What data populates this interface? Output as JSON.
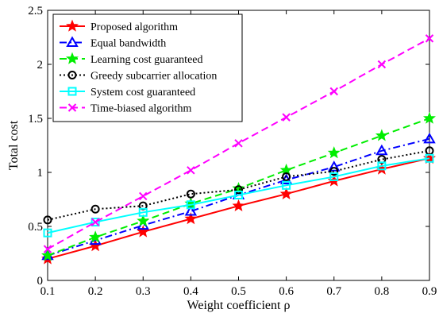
{
  "chart_data": {
    "type": "line",
    "title": "",
    "xlabel": "Weight coefficient ρ",
    "ylabel": "Total cost",
    "xlim": [
      0.1,
      0.9
    ],
    "ylim": [
      0,
      2.5
    ],
    "x": [
      0.1,
      0.2,
      0.3,
      0.4,
      0.5,
      0.6,
      0.7,
      0.8,
      0.9
    ],
    "x_ticks": [
      "0.1",
      "0.2",
      "0.3",
      "0.4",
      "0.5",
      "0.6",
      "0.7",
      "0.8",
      "0.9"
    ],
    "y_ticks": [
      {
        "value": 0,
        "label": "0"
      },
      {
        "value": 0.5,
        "label": "0.5"
      },
      {
        "value": 1,
        "label": "1"
      },
      {
        "value": 1.5,
        "label": "1.5"
      },
      {
        "value": 2,
        "label": "2"
      },
      {
        "value": 2.5,
        "label": "2.5"
      }
    ],
    "grid": false,
    "legend_position": "top-left",
    "series": [
      {
        "name": "Proposed algorithm",
        "color": "#ff0000",
        "dash": "solid",
        "marker": "star",
        "values": [
          0.2,
          0.32,
          0.45,
          0.57,
          0.69,
          0.8,
          0.92,
          1.03,
          1.13
        ]
      },
      {
        "name": "Equal bandwidth",
        "color": "#0000ff",
        "dash": "dashdot",
        "marker": "triangle",
        "values": [
          0.23,
          0.37,
          0.51,
          0.64,
          0.79,
          0.93,
          1.05,
          1.2,
          1.31
        ]
      },
      {
        "name": "Learning cost guaranteed",
        "color": "#00ee00",
        "dash": "dashed",
        "marker": "star",
        "values": [
          0.23,
          0.4,
          0.55,
          0.71,
          0.85,
          1.02,
          1.18,
          1.34,
          1.5
        ]
      },
      {
        "name": "Greedy subcarrier allocation",
        "color": "#000000",
        "dash": "dotted",
        "marker": "circle",
        "values": [
          0.56,
          0.66,
          0.69,
          0.8,
          0.84,
          0.96,
          1.01,
          1.12,
          1.2
        ]
      },
      {
        "name": "System cost guaranteed",
        "color": "#00ffff",
        "dash": "solid",
        "marker": "square",
        "values": [
          0.44,
          0.54,
          0.63,
          0.7,
          0.79,
          0.88,
          0.96,
          1.06,
          1.13
        ]
      },
      {
        "name": "Time-biased algorithm",
        "color": "#ff00ff",
        "dash": "dashed",
        "marker": "x",
        "values": [
          0.29,
          0.54,
          0.78,
          1.02,
          1.27,
          1.51,
          1.75,
          2.0,
          2.24
        ]
      }
    ]
  }
}
